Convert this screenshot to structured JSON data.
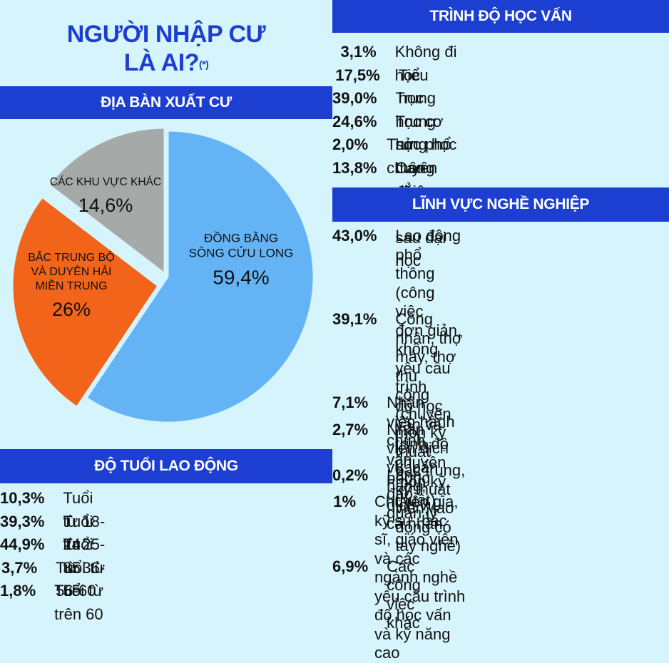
{
  "title_line1": "NGƯỜI NHẬP CƯ",
  "title_line2": "LÀ AI?",
  "title_mark": "(*)",
  "colors": {
    "background": "#d6f4fb",
    "band": "#1d3fd1",
    "title": "#1d3fd1",
    "slice_mekong": "#64b4f5",
    "slice_central": "#f26419",
    "slice_other": "#a5aaa8"
  },
  "chart_data": [
    {
      "type": "pie",
      "title": "ĐỊA BÀN XUẤT CƯ",
      "slices": [
        {
          "label": "ĐỒNG BẰNG SÔNG CỬU LONG",
          "label_lines": [
            "ĐỒNG BẰNG",
            "SÔNG CỬU LONG"
          ],
          "value": 59.4,
          "value_text": "59,4%",
          "color": "#64b4f5"
        },
        {
          "label": "BẮC TRUNG BỘ VÀ DUYÊN HẢI MIỀN TRUNG",
          "label_lines": [
            "BẮC TRUNG BỘ",
            "VÀ DUYÊN HẢI",
            "MIỀN TRUNG"
          ],
          "value": 26,
          "value_text": "26%",
          "color": "#f26419"
        },
        {
          "label": "CÁC KHU VỰC KHÁC",
          "label_lines": [
            "CÁC KHU VỰC KHÁC"
          ],
          "value": 14.6,
          "value_text": "14,6%",
          "color": "#a5aaa8"
        }
      ]
    },
    {
      "type": "table",
      "title": "ĐỘ TUỔI LAO ĐỘNG",
      "rows": [
        {
          "value": 10.3,
          "value_text": "10,3%",
          "label": "Tuổi từ 18-24"
        },
        {
          "value": 39.3,
          "value_text": "39,3%",
          "label": "Tuổi từ 25-35"
        },
        {
          "value": 44.9,
          "value_text": "44,9%",
          "label": "Tuổi từ 36-55"
        },
        {
          "value": 3.7,
          "value_text": "3,7%",
          "label": "Tuổi từ 56-60"
        },
        {
          "value": 1.8,
          "value_text": "1,8%",
          "label": "Tuổi từ trên 60"
        }
      ]
    },
    {
      "type": "table",
      "title": "TRÌNH ĐỘ HỌC VẤN",
      "rows": [
        {
          "value": 3.1,
          "value_text": "3,1%",
          "label": "Không đi học"
        },
        {
          "value": 17.5,
          "value_text": "17,5%",
          "label": "Tiểu học"
        },
        {
          "value": 39.0,
          "value_text": "39,0%",
          "label": "Trung học cơ sở"
        },
        {
          "value": 24.6,
          "value_text": "24,6%",
          "label": "Trung học phổ thông"
        },
        {
          "value": 2.0,
          "value_text": "2,0%",
          "label": "Trung học chuyên nghiệp"
        },
        {
          "value": 13.8,
          "value_text": "13,8%",
          "label": "Cao đẳng, đại học, sau đại học"
        }
      ]
    },
    {
      "type": "table",
      "title": "LĨNH VỰC NGHỀ NGHIỆP",
      "rows": [
        {
          "value": 43.0,
          "value_text": "43,0%",
          "label_lines": [
            "Lao động phổ thông (công việc",
            "đơn giản, không yêu cầu trình",
            "độ học vấn và trình độ chuyên",
            "môn kỹ thuật)"
          ]
        },
        {
          "value": 39.1,
          "value_text": "39,1%",
          "label_lines": [
            "Công nhân, thợ máy, thợ thủ",
            "công (chuyên môn kỹ thuật",
            "bậc trung, kỹ thuật viên, lao",
            "động có tay nghề)"
          ]
        },
        {
          "value": 7.1,
          "value_text": "7,1%",
          "label_lines": [
            "Nhân viên hành chính, văn phòng"
          ]
        },
        {
          "value": 2.7,
          "value_text": "2,7%",
          "label_lines": [
            "Nhân viên dịch vụ, bán hàng,",
            "dịch vụ cá nhân"
          ]
        },
        {
          "value": 0.2,
          "value_text": "0,2%",
          "label_lines": [
            "Lãnh đạo, quản lý"
          ]
        },
        {
          "value": 1,
          "value_text": "1%",
          "label_lines": [
            "Chuyên gia, kỹ sư, bác sĩ, giáo viên",
            "và các ngành nghề yêu cầu trình",
            "độ học vấn và kỹ năng cao"
          ]
        },
        {
          "value": 6.9,
          "value_text": "6,9%",
          "label_lines": [
            "Các công việc khác"
          ]
        }
      ]
    }
  ]
}
